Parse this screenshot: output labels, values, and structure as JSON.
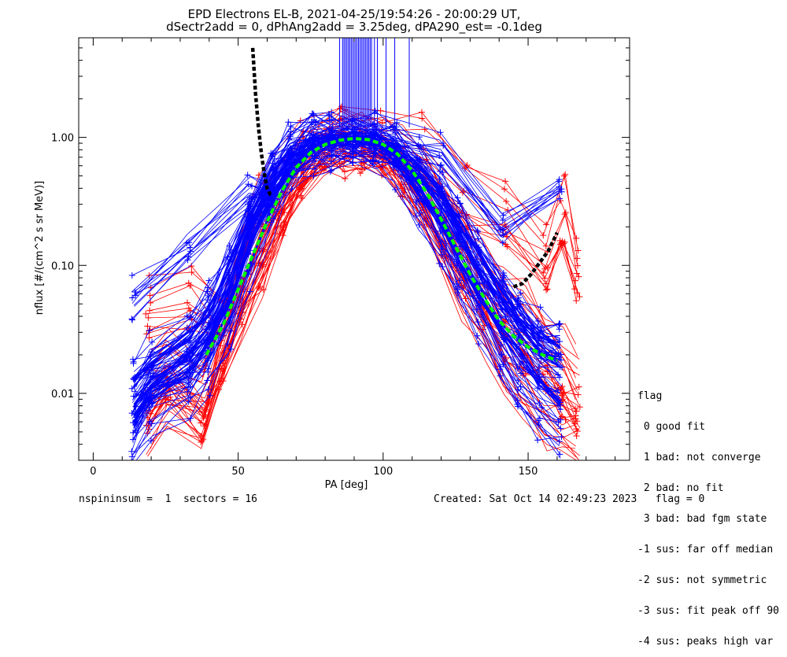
{
  "chart_data": {
    "type": "scatter",
    "title": "EPD Electrons EL-B, 2021-04-25/19:54:26 - 20:00:29 UT,",
    "subtitle": "dSectr2add = 0, dPhAng2add = 3.25deg, dPA290_est=  -0.1deg",
    "xlabel": "PA [deg]",
    "ylabel": "nflux [#/(cm^2 s sr MeV)]",
    "xlim": [
      -5,
      185
    ],
    "ylim": [
      0.003,
      6.0
    ],
    "yscale": "log",
    "xticks": [
      {
        "value": 0,
        "label": "0"
      },
      {
        "value": 50,
        "label": "50"
      },
      {
        "value": 100,
        "label": "100"
      },
      {
        "value": 150,
        "label": "150"
      }
    ],
    "yticks": [
      {
        "value": 0.01,
        "label": "0.01"
      },
      {
        "value": 0.1,
        "label": "0.10"
      },
      {
        "value": 1.0,
        "label": "1.00"
      }
    ],
    "series": [
      {
        "color": "#0000ff",
        "values": [
          [
            [
              14,
              0.0085
            ],
            [
              20,
              0.012
            ],
            [
              33,
              0.02
            ],
            [
              40,
              0.03
            ],
            [
              47,
              0.07
            ],
            [
              54,
              0.2
            ],
            [
              62,
              0.45
            ],
            [
              68,
              0.7
            ],
            [
              76,
              0.9
            ],
            [
              82,
              0.95
            ],
            [
              90,
              1.0
            ],
            [
              97,
              0.95
            ],
            [
              104,
              0.8
            ],
            [
              112,
              0.5
            ],
            [
              120,
              0.3
            ],
            [
              126,
              0.18
            ],
            [
              133,
              0.09
            ],
            [
              141,
              0.05
            ],
            [
              147,
              0.035
            ],
            [
              154,
              0.022
            ],
            [
              161,
              0.018
            ]
          ],
          [
            [
              14,
              0.006
            ],
            [
              20,
              0.01
            ],
            [
              33,
              0.015
            ],
            [
              40,
              0.025
            ],
            [
              47,
              0.05
            ],
            [
              54,
              0.15
            ],
            [
              62,
              0.35
            ],
            [
              68,
              0.6
            ],
            [
              76,
              0.85
            ],
            [
              82,
              0.9
            ],
            [
              90,
              0.92
            ],
            [
              97,
              0.9
            ],
            [
              104,
              0.7
            ],
            [
              112,
              0.4
            ],
            [
              120,
              0.22
            ],
            [
              126,
              0.12
            ],
            [
              133,
              0.06
            ],
            [
              141,
              0.03
            ],
            [
              147,
              0.02
            ],
            [
              154,
              0.012
            ],
            [
              161,
              0.009
            ]
          ],
          [
            [
              14,
              0.012
            ],
            [
              20,
              0.018
            ],
            [
              33,
              0.028
            ],
            [
              40,
              0.045
            ],
            [
              47,
              0.1
            ],
            [
              54,
              0.25
            ],
            [
              62,
              0.55
            ],
            [
              68,
              0.8
            ],
            [
              76,
              0.95
            ],
            [
              82,
              0.98
            ],
            [
              90,
              0.97
            ],
            [
              97,
              0.93
            ],
            [
              104,
              0.85
            ],
            [
              112,
              0.6
            ],
            [
              120,
              0.38
            ],
            [
              126,
              0.22
            ],
            [
              133,
              0.12
            ],
            [
              141,
              0.06
            ],
            [
              147,
              0.04
            ],
            [
              154,
              0.028
            ],
            [
              161,
              0.025
            ]
          ],
          [
            [
              14,
              0.004
            ],
            [
              20,
              0.007
            ],
            [
              33,
              0.011
            ],
            [
              40,
              0.016
            ],
            [
              47,
              0.035
            ],
            [
              54,
              0.1
            ],
            [
              62,
              0.28
            ],
            [
              68,
              0.55
            ],
            [
              76,
              0.8
            ],
            [
              82,
              0.88
            ],
            [
              90,
              0.9
            ],
            [
              97,
              0.87
            ],
            [
              104,
              0.65
            ],
            [
              112,
              0.32
            ],
            [
              120,
              0.15
            ],
            [
              126,
              0.08
            ],
            [
              133,
              0.04
            ],
            [
              141,
              0.018
            ],
            [
              147,
              0.011
            ],
            [
              154,
              0.007
            ],
            [
              161,
              0.005
            ]
          ],
          [
            [
              14,
              0.06
            ],
            [
              33,
              0.14
            ],
            [
              54,
              0.38
            ],
            [
              62,
              0.42
            ],
            [
              76,
              0.98
            ],
            [
              97,
              1.1
            ],
            [
              120,
              0.85
            ],
            [
              141,
              0.2
            ],
            [
              161,
              0.45
            ]
          ]
        ]
      },
      {
        "color": "#ff0000",
        "values": [
          [
            [
              19,
              0.009
            ],
            [
              26,
              0.014
            ],
            [
              38,
              0.008
            ],
            [
              44,
              0.02
            ],
            [
              51,
              0.06
            ],
            [
              58,
              0.12
            ],
            [
              65,
              0.3
            ],
            [
              72,
              0.6
            ],
            [
              79,
              0.85
            ],
            [
              86,
              0.95
            ],
            [
              93,
              0.93
            ],
            [
              100,
              0.85
            ],
            [
              107,
              0.6
            ],
            [
              114,
              0.35
            ],
            [
              121,
              0.2
            ],
            [
              128,
              0.11
            ],
            [
              135,
              0.06
            ],
            [
              142,
              0.035
            ],
            [
              149,
              0.025
            ],
            [
              156,
              0.018
            ],
            [
              162,
              0.012
            ],
            [
              167,
              0.009
            ]
          ],
          [
            [
              19,
              0.005
            ],
            [
              26,
              0.009
            ],
            [
              38,
              0.006
            ],
            [
              44,
              0.015
            ],
            [
              51,
              0.04
            ],
            [
              58,
              0.09
            ],
            [
              65,
              0.22
            ],
            [
              72,
              0.5
            ],
            [
              79,
              0.78
            ],
            [
              86,
              0.88
            ],
            [
              93,
              0.9
            ],
            [
              100,
              0.78
            ],
            [
              107,
              0.5
            ],
            [
              114,
              0.25
            ],
            [
              121,
              0.12
            ],
            [
              128,
              0.06
            ],
            [
              135,
              0.03
            ],
            [
              142,
              0.015
            ],
            [
              149,
              0.009
            ],
            [
              156,
              0.006
            ],
            [
              162,
              0.005
            ],
            [
              167,
              0.004
            ]
          ],
          [
            [
              19,
              0.05
            ],
            [
              33,
              0.06
            ],
            [
              44,
              0.045
            ],
            [
              58,
              0.3
            ],
            [
              72,
              0.75
            ],
            [
              86,
              1.3
            ],
            [
              100,
              1.0
            ],
            [
              114,
              0.9
            ],
            [
              128,
              0.35
            ],
            [
              142,
              0.25
            ],
            [
              156,
              0.12
            ],
            [
              162,
              0.28
            ],
            [
              167,
              0.1
            ]
          ],
          [
            [
              19,
              0.014
            ],
            [
              26,
              0.02
            ],
            [
              38,
              0.012
            ],
            [
              44,
              0.03
            ],
            [
              51,
              0.09
            ],
            [
              58,
              0.2
            ],
            [
              65,
              0.4
            ],
            [
              72,
              0.7
            ],
            [
              79,
              0.9
            ],
            [
              86,
              1.0
            ],
            [
              93,
              0.98
            ],
            [
              100,
              0.9
            ],
            [
              107,
              0.75
            ],
            [
              114,
              0.5
            ],
            [
              121,
              0.3
            ],
            [
              128,
              0.18
            ],
            [
              135,
              0.1
            ],
            [
              142,
              0.06
            ],
            [
              149,
              0.045
            ],
            [
              156,
              0.03
            ],
            [
              162,
              0.02
            ],
            [
              167,
              0.015
            ]
          ]
        ]
      },
      {
        "color": "#00ff00",
        "style": "dashed",
        "values": [
          [
            39,
            0.02
          ],
          [
            45,
            0.035
          ],
          [
            50,
            0.065
          ],
          [
            55,
            0.12
          ],
          [
            60,
            0.22
          ],
          [
            65,
            0.38
          ],
          [
            70,
            0.58
          ],
          [
            75,
            0.76
          ],
          [
            80,
            0.88
          ],
          [
            85,
            0.95
          ],
          [
            90,
            0.98
          ],
          [
            95,
            0.96
          ],
          [
            100,
            0.88
          ],
          [
            105,
            0.74
          ],
          [
            110,
            0.55
          ],
          [
            115,
            0.37
          ],
          [
            120,
            0.23
          ],
          [
            125,
            0.14
          ],
          [
            130,
            0.085
          ],
          [
            135,
            0.055
          ],
          [
            140,
            0.037
          ],
          [
            145,
            0.028
          ],
          [
            150,
            0.023
          ],
          [
            155,
            0.02
          ],
          [
            160,
            0.018
          ]
        ]
      },
      {
        "color": "#000000",
        "style": "dotted",
        "values": [
          [
            55,
            5.0
          ],
          [
            56,
            2.2
          ],
          [
            57,
            1.2
          ],
          [
            58,
            0.75
          ],
          [
            59,
            0.52
          ],
          [
            60,
            0.4
          ],
          [
            61,
            0.36
          ],
          [
            62,
            0.35
          ],
          [
            145,
            0.068
          ],
          [
            148,
            0.072
          ],
          [
            151,
            0.085
          ],
          [
            154,
            0.105
          ],
          [
            157,
            0.13
          ],
          [
            160,
            0.18
          ]
        ]
      },
      {
        "color": "#0000ff",
        "style": "vertical-lines",
        "from": 1.2,
        "to": 6.0,
        "values": [
          85,
          86,
          86.5,
          87,
          87.5,
          88,
          88.5,
          89,
          89.5,
          90,
          90.5,
          91,
          91.5,
          92,
          92.5,
          93,
          93.5,
          94,
          94.5,
          95,
          95.5,
          96,
          97,
          98,
          101,
          104,
          109
        ]
      }
    ]
  },
  "legend": {
    "title": "flag",
    "items": [
      " 0 good fit",
      " 1 bad: not converge",
      " 2 bad: no fit",
      " 3 bad: bad fgm state",
      "-1 sus: far off median",
      "-2 sus: not symmetric",
      "-3 sus: fit peak off 90",
      "-4 sus: peaks high var"
    ]
  },
  "footer": {
    "left": "nspininsum =  1  sectors = 16",
    "right": "Created: Sat Oct 14 02:49:23 2023   flag = 0"
  }
}
